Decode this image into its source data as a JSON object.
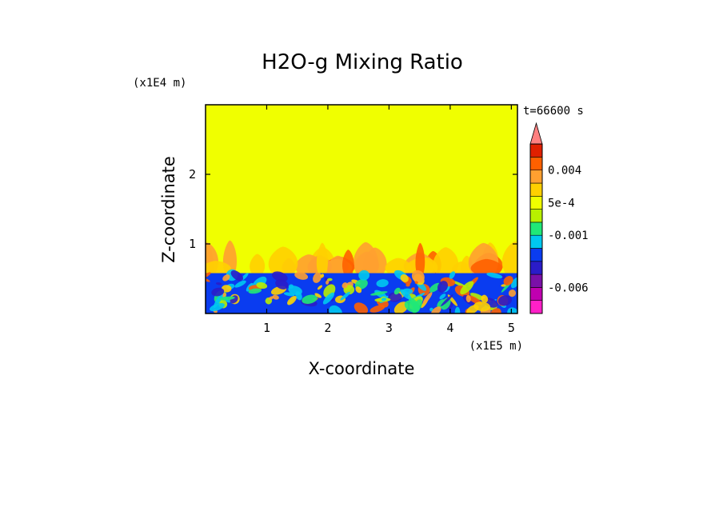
{
  "chart_data": {
    "type": "heatmap",
    "title": "H2O-g Mixing Ratio",
    "xlabel": "X-coordinate",
    "ylabel": "Z-coordinate",
    "x_multiplier": "(x1E5 m)",
    "y_multiplier": "(x1E4 m)",
    "time_label": "t=66600 s",
    "x_ticks": [
      1,
      2,
      3,
      4,
      5
    ],
    "y_ticks": [
      1,
      2
    ],
    "xlim": [
      0,
      5.1
    ],
    "ylim": [
      0,
      3
    ],
    "grid": false,
    "colorbar": {
      "colors": [
        "#ff20c8",
        "#c000b0",
        "#7a10a8",
        "#2a1cc8",
        "#0a3cf0",
        "#00c8f0",
        "#20e878",
        "#b8f000",
        "#f0ff00",
        "#ffd000",
        "#ffa030",
        "#ff6000",
        "#e02000",
        "#ff8080"
      ],
      "labels": [
        "0.004",
        "5e-4",
        "-0.001",
        "-0.006"
      ],
      "label_levels": [
        11,
        8.5,
        6,
        2
      ]
    },
    "field": {
      "background_color": "#f0ff00",
      "boundary_layer_top": 0.58,
      "plume_top": 1.05
    }
  }
}
